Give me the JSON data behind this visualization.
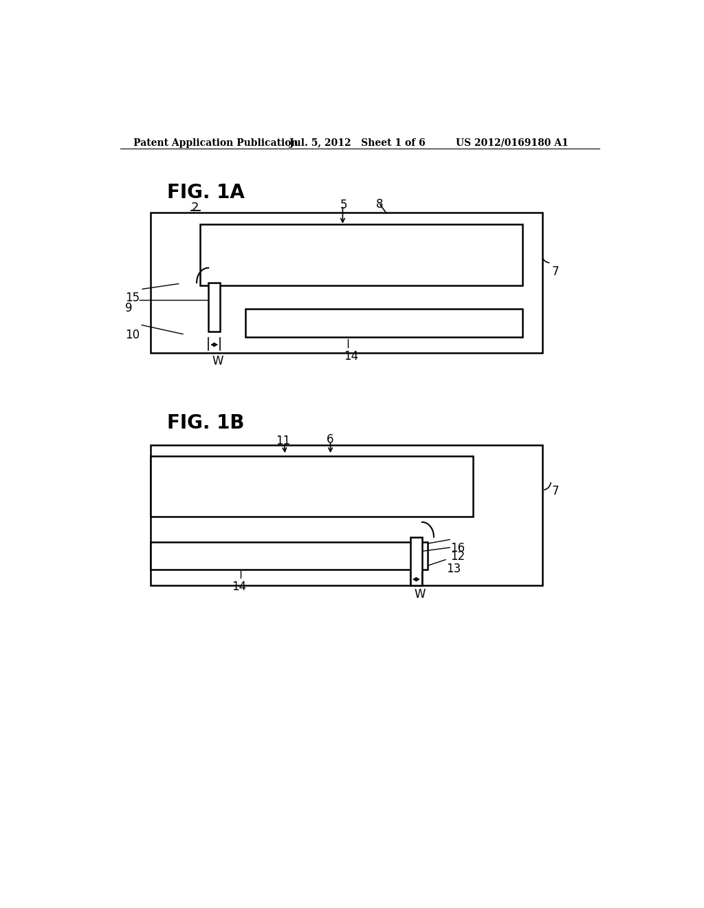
{
  "background_color": "#ffffff",
  "header_left": "Patent Application Publication",
  "header_mid": "Jul. 5, 2012   Sheet 1 of 6",
  "header_right": "US 2012/0169180 A1",
  "fig1a_label": "FIG. 1A",
  "fig1b_label": "FIG. 1B",
  "label_2": "2",
  "label_5": "5",
  "label_6": "6",
  "label_7": "7",
  "label_8": "8",
  "label_9": "9",
  "label_10": "10",
  "label_11": "11",
  "label_12": "12",
  "label_13": "13",
  "label_14": "14",
  "label_15": "15",
  "label_16": "16",
  "label_W": "W"
}
